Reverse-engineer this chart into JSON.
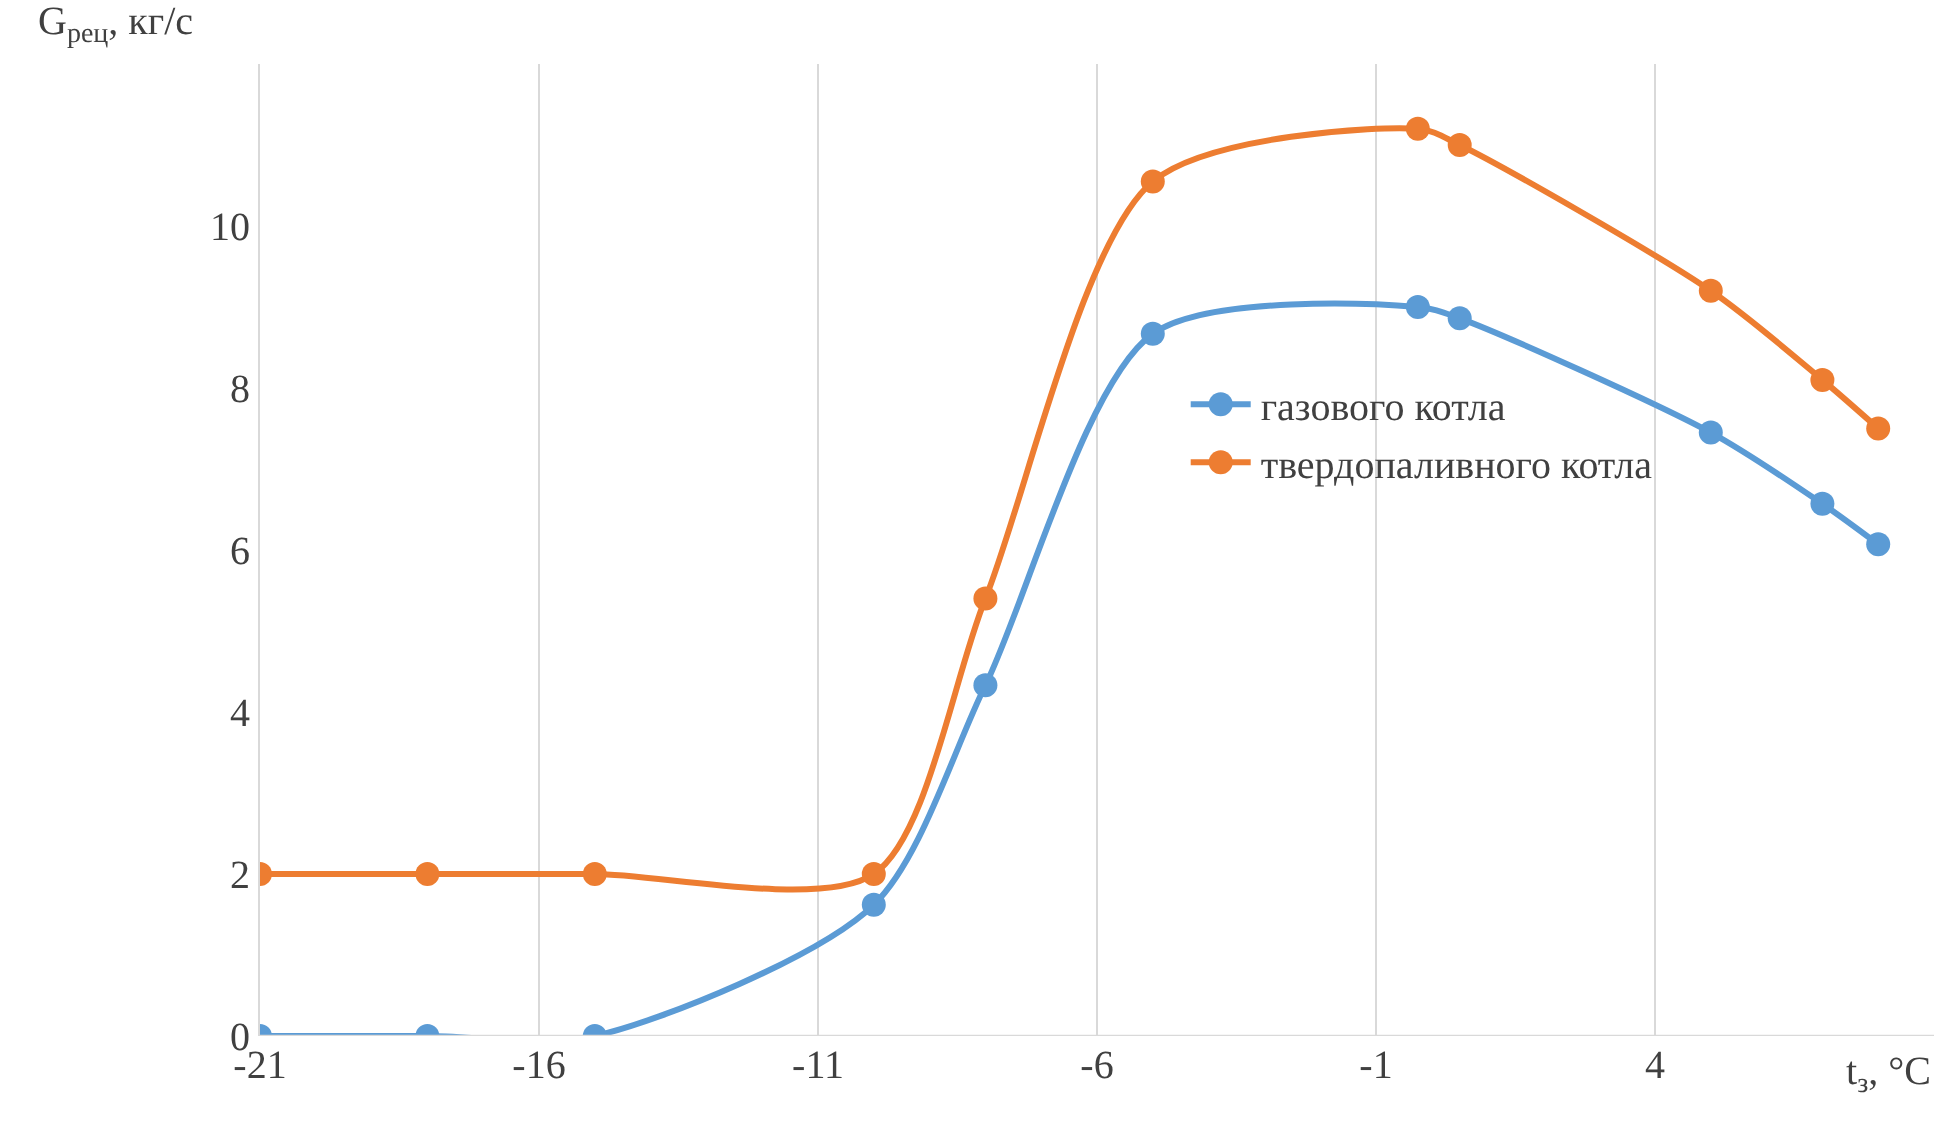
{
  "chart_data": {
    "type": "line",
    "xlabel": "t$_{з}$, °C",
    "ylabel": "G$_{рец}$, кг/с",
    "x": [
      -21,
      -18,
      -15,
      -10,
      -8,
      -5,
      -0.25,
      0.5,
      5,
      7,
      8
    ],
    "series": [
      {
        "name": "газового котла",
        "color": "#5b9bd5",
        "values": [
          0,
          0,
          0,
          1.62,
          4.33,
          8.67,
          9.0,
          8.86,
          7.45,
          6.57,
          6.07
        ]
      },
      {
        "name": "твердопаливного котла",
        "color": "#ed7d31",
        "values": [
          2,
          2,
          2,
          2,
          5.4,
          10.55,
          11.2,
          11.0,
          9.2,
          8.1,
          7.5
        ]
      }
    ],
    "xlim": [
      -21,
      9
    ],
    "xticks": [
      -21,
      -16,
      -11,
      -6,
      -1,
      4
    ],
    "ylim": [
      0,
      12
    ],
    "yticks": [
      0,
      2,
      4,
      6,
      8,
      10
    ],
    "grid": "x",
    "legend": "right",
    "marker": "circle",
    "line_style": "solid"
  }
}
